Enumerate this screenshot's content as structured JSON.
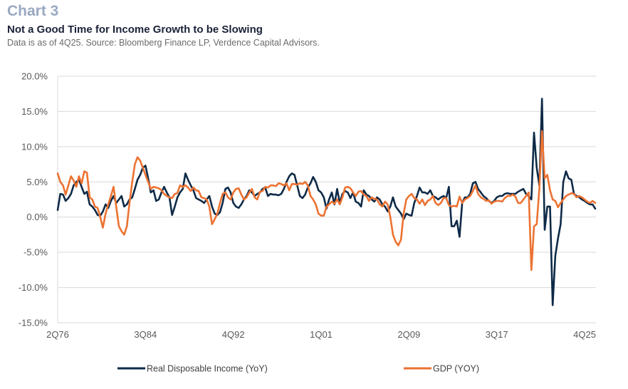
{
  "header": {
    "label": "Chart 3",
    "title": "Not a Good Time for Income Growth to be Slowing",
    "subtitle": "Data is as of 4Q25. Source: Bloomberg Finance LP, Verdence Capital Advisors."
  },
  "colors": {
    "rdi": "#0e2a47",
    "gdp": "#ec7232",
    "grid": "#d9d9d9"
  },
  "chart_data": {
    "type": "line",
    "title": "Not a Good Time for Income Growth to be Slowing",
    "xlabel": "",
    "ylabel": "",
    "x_start": "2Q76",
    "x_end": "4Q25",
    "frequency": "quarterly",
    "ylim": [
      -15,
      20
    ],
    "y_ticks": [
      20,
      15,
      10,
      5,
      0,
      -5,
      -10,
      -15
    ],
    "y_tick_labels": [
      "20.0%",
      "15.0%",
      "10.0%",
      "5.0%",
      "0.0%",
      "-5.0%",
      "-10.0%",
      "-15.0%"
    ],
    "x_tick_labels": [
      "2Q76",
      "3Q84",
      "4Q92",
      "1Q01",
      "2Q09",
      "3Q17",
      "4Q25"
    ],
    "x_tick_index": [
      0,
      33,
      66,
      99,
      132,
      165,
      198
    ],
    "grid": true,
    "legend": "bottom",
    "series": [
      {
        "name": "Real Disposable Income (YoY)",
        "values": [
          1.0,
          3.3,
          3.2,
          2.3,
          2.7,
          3.3,
          4.5,
          5.0,
          5.3,
          4.3,
          3.3,
          3.6,
          1.8,
          1.5,
          1.0,
          0.3,
          0.2,
          0.8,
          1.8,
          1.3,
          2.3,
          3.0,
          2.0,
          2.5,
          3.0,
          1.5,
          1.8,
          2.5,
          2.8,
          4.0,
          5.3,
          6.0,
          7.0,
          7.3,
          5.5,
          3.5,
          3.8,
          2.3,
          2.5,
          3.5,
          4.3,
          3.5,
          2.8,
          0.3,
          1.5,
          2.8,
          3.5,
          4.0,
          6.2,
          5.3,
          4.5,
          3.8,
          2.7,
          2.5,
          2.3,
          2.0,
          2.5,
          3.0,
          1.5,
          0.5,
          0.3,
          0.7,
          2.0,
          4.0,
          4.2,
          3.5,
          2.0,
          1.5,
          1.3,
          1.8,
          2.5,
          3.0,
          3.8,
          3.5,
          3.0,
          3.3,
          3.5,
          4.0,
          4.2,
          3.0,
          3.3,
          3.2,
          3.2,
          3.1,
          3.3,
          4.0,
          5.0,
          5.8,
          6.2,
          6.0,
          4.5,
          3.0,
          2.7,
          3.2,
          4.2,
          4.8,
          5.7,
          5.0,
          3.8,
          3.5,
          2.8,
          1.2,
          2.5,
          3.5,
          1.8,
          4.0,
          2.0,
          3.3,
          3.7,
          3.5,
          2.7,
          3.5,
          2.2,
          2.0,
          1.5,
          3.8,
          3.2,
          3.0,
          2.5,
          2.2,
          2.8,
          2.5,
          1.8,
          1.5,
          0.8,
          1.5,
          2.8,
          1.5,
          1.0,
          0.5,
          -0.3,
          0.5,
          0.3,
          0.2,
          2.0,
          3.0,
          4.2,
          3.5,
          3.5,
          3.3,
          3.8,
          3.0,
          2.8,
          2.5,
          2.8,
          3.0,
          2.7,
          4.3,
          -1.3,
          -1.3,
          -0.5,
          -2.8,
          2.0,
          2.8,
          2.8,
          3.3,
          4.8,
          5.0,
          4.0,
          3.5,
          3.0,
          2.7,
          2.3,
          2.0,
          2.3,
          2.8,
          3.0,
          3.0,
          3.3,
          3.4,
          3.3,
          3.3,
          3.3,
          3.6,
          3.8,
          4.0,
          3.3,
          3.0,
          2.5,
          12.0,
          7.0,
          4.5,
          16.8,
          -1.8,
          1.5,
          1.5,
          -12.5,
          -5.5,
          -3.0,
          -1.0,
          5.0,
          6.5,
          5.5,
          5.3,
          3.3,
          3.0,
          2.8,
          2.5,
          2.3,
          2.0,
          1.8,
          1.8,
          1.2
        ]
      },
      {
        "name": "GDP (YOY)",
        "values": [
          6.2,
          5.0,
          4.5,
          3.2,
          4.5,
          5.8,
          5.2,
          4.3,
          5.8,
          4.8,
          6.5,
          6.3,
          2.8,
          2.5,
          1.5,
          1.3,
          0.0,
          -1.5,
          0.5,
          1.8,
          3.0,
          4.3,
          1.5,
          -1.3,
          -2.0,
          -2.5,
          -1.3,
          2.0,
          5.0,
          7.5,
          8.5,
          8.0,
          7.0,
          6.0,
          5.0,
          4.0,
          4.3,
          4.2,
          4.1,
          3.8,
          3.3,
          3.0,
          2.8,
          2.7,
          3.3,
          3.4,
          4.5,
          4.3,
          4.5,
          4.2,
          3.7,
          4.2,
          3.8,
          3.7,
          2.8,
          2.7,
          2.5,
          1.5,
          -1.0,
          -0.3,
          0.5,
          2.0,
          3.3,
          3.5,
          2.8,
          2.5,
          3.5,
          4.0,
          4.1,
          3.2,
          2.5,
          2.8,
          3.5,
          4.0,
          2.8,
          2.5,
          3.6,
          3.7,
          4.3,
          4.2,
          4.5,
          4.5,
          4.4,
          4.8,
          4.7,
          4.5,
          4.8,
          3.8,
          4.7,
          4.7,
          4.6,
          4.8,
          4.7,
          5.0,
          4.5,
          3.0,
          2.5,
          1.8,
          0.5,
          0.2,
          0.2,
          1.5,
          1.8,
          2.2,
          1.9,
          2.5,
          1.8,
          2.8,
          4.2,
          4.3,
          4.1,
          3.5,
          3.0,
          3.6,
          3.7,
          3.2,
          3.0,
          2.3,
          2.8,
          2.6,
          2.5,
          1.8,
          1.5,
          2.2,
          1.8,
          0.0,
          -2.5,
          -3.5,
          -4.0,
          -3.2,
          0.5,
          2.5,
          3.0,
          3.3,
          2.7,
          2.5,
          1.9,
          2.5,
          1.7,
          2.3,
          2.5,
          3.0,
          2.0,
          1.7,
          2.0,
          2.7,
          2.7,
          1.7,
          1.5,
          1.6,
          1.5,
          2.9,
          2.0,
          2.5,
          2.7,
          3.0,
          3.7,
          4.5,
          3.3,
          2.8,
          2.6,
          2.3,
          2.4,
          1.9,
          2.2,
          2.3,
          2.3,
          2.2,
          2.7,
          3.0,
          3.0,
          3.2,
          2.9,
          2.0,
          2.0,
          2.5,
          3.0,
          3.5,
          -7.5,
          -1.3,
          -1.0,
          4.0,
          12.2,
          5.5,
          6.0,
          3.8,
          2.5,
          2.3,
          1.4,
          2.0,
          2.5,
          3.0,
          3.2,
          3.4,
          3.3,
          2.8,
          3.0,
          2.8,
          2.5,
          2.2,
          2.0,
          2.3,
          2.0
        ]
      }
    ]
  },
  "legend": [
    {
      "label": "Real Disposable Income (YoY)",
      "color_key": "rdi"
    },
    {
      "label": "GDP (YOY)",
      "color_key": "gdp"
    }
  ]
}
